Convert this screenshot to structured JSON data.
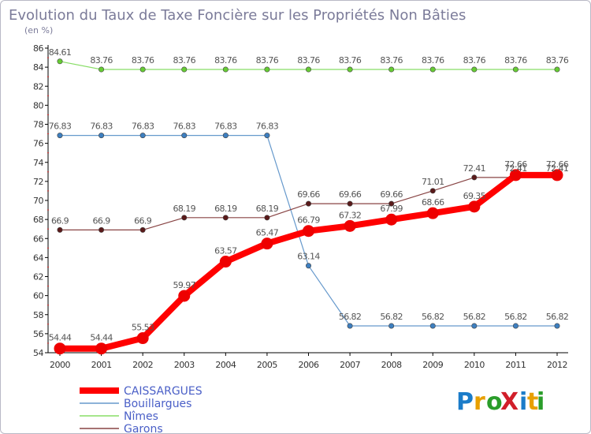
{
  "chart_data": {
    "type": "line",
    "title": "Evolution du Taux de Taxe Foncière sur les Propriétés Non Bâties",
    "subtitle": "(en %)",
    "x": [
      "2000",
      "2001",
      "2002",
      "2003",
      "2004",
      "2005",
      "2006",
      "2007",
      "2008",
      "2009",
      "2010",
      "2011",
      "2012"
    ],
    "ylim": [
      54,
      86
    ],
    "yticks": [
      "54",
      "56",
      "58",
      "60",
      "62",
      "64",
      "66",
      "68",
      "70",
      "72",
      "74",
      "76",
      "78",
      "80",
      "82",
      "84",
      "86"
    ],
    "series": [
      {
        "name": "CAISSARGUES",
        "color": "#ff0000",
        "values": [
          54.44,
          54.44,
          55.53,
          59.97,
          63.57,
          65.47,
          66.79,
          67.32,
          67.99,
          68.66,
          69.35,
          72.66,
          72.66
        ],
        "labels": [
          "54.44",
          "54.44",
          "55.53",
          "59.97",
          "63.57",
          "65.47",
          "66.79",
          "67.32",
          "67.99",
          "68.66",
          "69.35",
          "72.66",
          "72.66"
        ]
      },
      {
        "name": "Bouillargues",
        "color": "#6699cc",
        "values": [
          76.83,
          76.83,
          76.83,
          76.83,
          76.83,
          76.83,
          63.14,
          56.82,
          56.82,
          56.82,
          56.82,
          56.82,
          56.82
        ],
        "labels": [
          "76.83",
          "76.83",
          "76.83",
          "76.83",
          "76.83",
          "76.83",
          "63.14",
          "56.82",
          "56.82",
          "56.82",
          "56.82",
          "56.82",
          "56.82"
        ]
      },
      {
        "name": "Nîmes",
        "color": "#88dd66",
        "values": [
          84.61,
          83.76,
          83.76,
          83.76,
          83.76,
          83.76,
          83.76,
          83.76,
          83.76,
          83.76,
          83.76,
          83.76,
          83.76
        ],
        "labels": [
          "84.61",
          "83.76",
          "83.76",
          "83.76",
          "83.76",
          "83.76",
          "83.76",
          "83.76",
          "83.76",
          "83.76",
          "83.76",
          "83.76",
          "83.76"
        ]
      },
      {
        "name": "Garons",
        "color": "#884444",
        "values": [
          66.9,
          66.9,
          66.9,
          68.19,
          68.19,
          68.19,
          69.66,
          69.66,
          69.66,
          71.01,
          72.41,
          72.41,
          72.41
        ],
        "labels": [
          "66.9",
          "66.9",
          "66.9",
          "68.19",
          "68.19",
          "68.19",
          "69.66",
          "69.66",
          "69.66",
          "71.01",
          "72.41",
          "72.41",
          "72.41"
        ]
      }
    ],
    "legend_position": "bottom-left",
    "grid": false
  },
  "logo": {
    "text": "ProXiti",
    "letters": [
      "P",
      "r",
      "o",
      "X",
      "i",
      "t",
      "i"
    ],
    "colors": [
      "#1b7cc9",
      "#e8a000",
      "#2a9d2a",
      "#d11e2a",
      "#1b7cc9",
      "#e8a000",
      "#2a9d2a"
    ]
  }
}
